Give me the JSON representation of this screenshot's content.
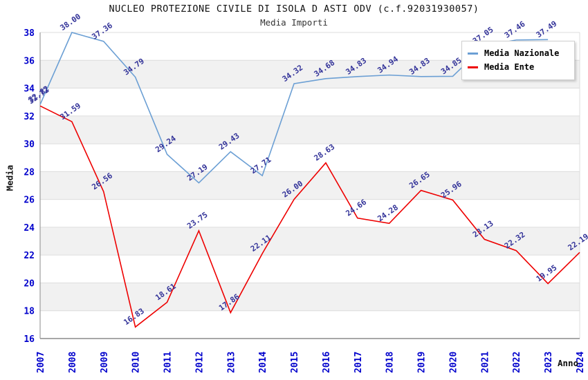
{
  "title": "NUCLEO PROTEZIONE CIVILE DI ISOLA D ASTI ODV (c.f.92031930057)",
  "subtitle": "Media Importi",
  "legend": {
    "position": "top-right",
    "items": [
      {
        "label": "Media Nazionale",
        "color": "#6b9fd4"
      },
      {
        "label": "Media Ente",
        "color": "#ee0000"
      }
    ]
  },
  "axes": {
    "xlabel": "Anno",
    "ylabel": "Media",
    "x_tick_color": "#0000cc",
    "y_tick_color": "#0000cc"
  },
  "colors": {
    "band_gray": "#f1f1f1",
    "gridline": "#dcdcdc",
    "axis_line": "#8a8a8a",
    "data_label": "#333399",
    "title": "#111111",
    "subtitle": "#333333"
  },
  "chart_data": {
    "type": "line",
    "title": "NUCLEO PROTEZIONE CIVILE DI ISOLA D ASTI ODV (c.f.92031930057)",
    "subtitle": "Media Importi",
    "xlabel": "Anno",
    "ylabel": "Media",
    "ylim": [
      16,
      38
    ],
    "ytick_step": 2,
    "grid": true,
    "banded_background": true,
    "legend_position": "top-right",
    "x": [
      2007,
      2008,
      2009,
      2010,
      2011,
      2012,
      2013,
      2014,
      2015,
      2016,
      2017,
      2018,
      2019,
      2020,
      2021,
      2022,
      2023,
      2024
    ],
    "series": [
      {
        "name": "Media Nazionale",
        "color": "#6b9fd4",
        "x": [
          2007,
          2008,
          2009,
          2010,
          2011,
          2012,
          2013,
          2014,
          2015,
          2016,
          2017,
          2018,
          2019,
          2020,
          2021,
          2022,
          2023
        ],
        "values": [
          32.82,
          38.0,
          37.36,
          34.79,
          29.24,
          27.19,
          29.43,
          27.71,
          34.32,
          34.68,
          34.83,
          34.94,
          34.83,
          34.85,
          37.05,
          37.46,
          37.49
        ],
        "labels": [
          "32.82",
          "38.00",
          "37.36",
          "34.79",
          "29.24",
          "27.19",
          "29.43",
          "27.71",
          "34.32",
          "34.68",
          "34.83",
          "34.94",
          "34.83",
          "34.85",
          "37.05",
          "37.46",
          "37.49"
        ]
      },
      {
        "name": "Media Ente",
        "color": "#ee0000",
        "x": [
          2007,
          2008,
          2009,
          2010,
          2011,
          2012,
          2013,
          2014,
          2015,
          2016,
          2017,
          2018,
          2019,
          2020,
          2021,
          2022,
          2023,
          2024
        ],
        "values": [
          32.72,
          31.59,
          26.56,
          16.83,
          18.61,
          23.75,
          17.86,
          22.11,
          26.0,
          28.63,
          24.66,
          24.28,
          26.65,
          25.96,
          23.13,
          22.32,
          19.95,
          22.19
        ],
        "labels": [
          "32.72",
          "31.59",
          "26.56",
          "16.83",
          "18.61",
          "23.75",
          "17.86",
          "22.11",
          "26.00",
          "28.63",
          "24.66",
          "24.28",
          "26.65",
          "25.96",
          "23.13",
          "22.32",
          "19.95",
          "22.19"
        ]
      }
    ]
  }
}
